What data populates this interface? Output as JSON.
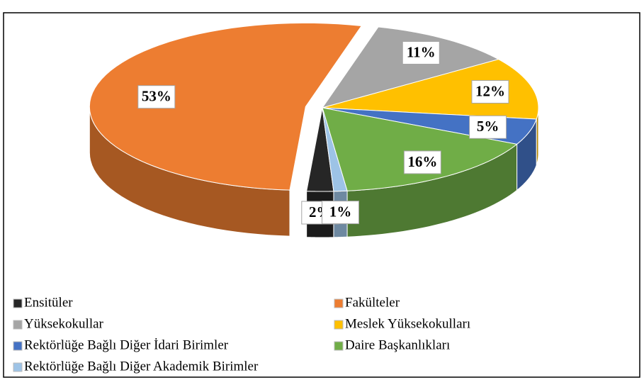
{
  "chart_data": {
    "type": "pie",
    "categories": [
      "Ensitüler",
      "Fakülteler",
      "Yüksekokullar",
      "Meslek Yüksekokulları",
      "Rektörlüğe Bağlı Diğer İdari Birimler",
      "Daire Başkanlıkları",
      "Rektörlüğe Bağlı Diğer Akademik  Birimler"
    ],
    "values": [
      2,
      53,
      11,
      12,
      5,
      16,
      1
    ],
    "value_labels": [
      "2%",
      "53%",
      "11%",
      "12%",
      "5%",
      "16%",
      "1%"
    ],
    "colors": [
      "#262626",
      "#ed7d31",
      "#a5a5a5",
      "#ffc000",
      "#4472c4",
      "#70ad47",
      "#9dc3e6"
    ],
    "legend": "bottom"
  }
}
